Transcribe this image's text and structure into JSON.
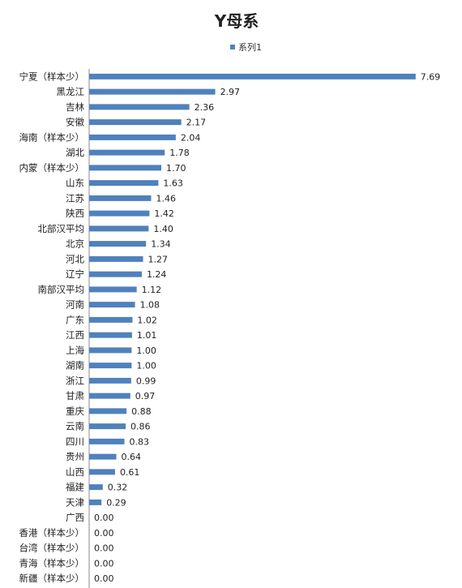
{
  "chart_data": {
    "type": "bar",
    "orientation": "horizontal",
    "title": "Y母系",
    "legend_position": "top",
    "categories": [
      "宁夏（样本少）",
      "黑龙江",
      "吉林",
      "安徽",
      "海南（样本少）",
      "湖北",
      "内蒙（样本少）",
      "山东",
      "江苏",
      "陕西",
      "北部汉平均",
      "北京",
      "河北",
      "辽宁",
      "南部汉平均",
      "河南",
      "广东",
      "江西",
      "上海",
      "湖南",
      "浙江",
      "甘肃",
      "重庆",
      "云南",
      "四川",
      "贵州",
      "山西",
      "福建",
      "天津",
      "广西",
      "香港（样本少）",
      "台湾（样本少）",
      "青海（样本少）",
      "新疆（样本少）"
    ],
    "series": [
      {
        "name": "系列1",
        "color": "#4f81bd",
        "values": [
          7.69,
          2.97,
          2.36,
          2.17,
          2.04,
          1.78,
          1.7,
          1.63,
          1.46,
          1.42,
          1.4,
          1.34,
          1.27,
          1.24,
          1.12,
          1.08,
          1.02,
          1.01,
          1.0,
          1.0,
          0.99,
          0.97,
          0.88,
          0.86,
          0.83,
          0.64,
          0.61,
          0.32,
          0.29,
          0.0,
          0.0,
          0.0,
          0.0,
          0.0
        ],
        "labels": [
          "7.69",
          "2.97",
          "2.36",
          "2.17",
          "2.04",
          "1.78",
          "1.70",
          "1.63",
          "1.46",
          "1.42",
          "1.40",
          "1.34",
          "1.27",
          "1.24",
          "1.12",
          "1.08",
          "1.02",
          "1.01",
          "1.00",
          "1.00",
          "0.99",
          "0.97",
          "0.88",
          "0.86",
          "0.83",
          "0.64",
          "0.61",
          "0.32",
          "0.29",
          "0.00",
          "0.00",
          "0.00",
          "0.00",
          "0.00"
        ]
      }
    ],
    "xlim": [
      0,
      8.4
    ],
    "grid": false
  }
}
